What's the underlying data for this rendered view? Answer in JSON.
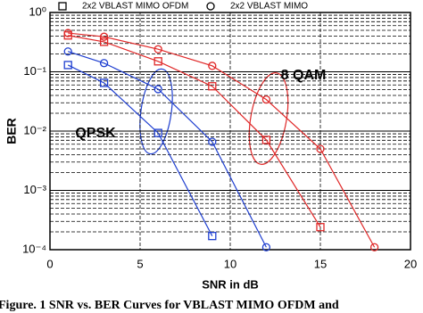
{
  "chart_data": {
    "type": "line",
    "x_label": "SNR in dB",
    "y_label": "BER",
    "caption": "Figure. 1 SNR vs. BER Curves for VBLAST MIMO OFDM and",
    "log_y": true,
    "grid": true,
    "xlim": [
      0,
      20
    ],
    "xticks": [
      0,
      5,
      10,
      15,
      20
    ],
    "ylim": [
      0.0001,
      1
    ],
    "yticks": [
      {
        "value": 0.0001,
        "label": "10⁻⁴"
      },
      {
        "value": 0.001,
        "label": "10⁻³"
      },
      {
        "value": 0.01,
        "label": "10⁻²"
      },
      {
        "value": 0.1,
        "label": "10⁻¹"
      },
      {
        "value": 1,
        "label": "10⁰"
      }
    ],
    "legend": [
      {
        "marker": "square",
        "label": "2x2 VBLAST MIMO OFDM"
      },
      {
        "marker": "circle",
        "label": "2x2 VBLAST MIMO"
      }
    ],
    "annotations": [
      {
        "text": "QPSK",
        "color": "#1f3fd0"
      },
      {
        "text": "8 QAM",
        "color": "#e02828"
      }
    ],
    "series": [
      {
        "marker": "square",
        "color": "#1f3fd0",
        "x": [
          1,
          3,
          6,
          9
        ],
        "values": [
          0.13,
          0.065,
          0.0093,
          0.00017
        ]
      },
      {
        "marker": "circle",
        "color": "#1f3fd0",
        "x": [
          1,
          3,
          6,
          9,
          12
        ],
        "values": [
          0.22,
          0.14,
          0.051,
          0.0066,
          0.00011
        ]
      },
      {
        "marker": "square",
        "color": "#e02828",
        "x": [
          1,
          3,
          6,
          9,
          12,
          15
        ],
        "values": [
          0.41,
          0.32,
          0.15,
          0.057,
          0.0071,
          0.00024
        ]
      },
      {
        "marker": "circle",
        "color": "#e02828",
        "x": [
          1,
          3,
          6,
          9,
          12,
          15,
          18
        ],
        "values": [
          0.45,
          0.39,
          0.24,
          0.126,
          0.034,
          0.005,
          0.00011
        ]
      }
    ]
  }
}
